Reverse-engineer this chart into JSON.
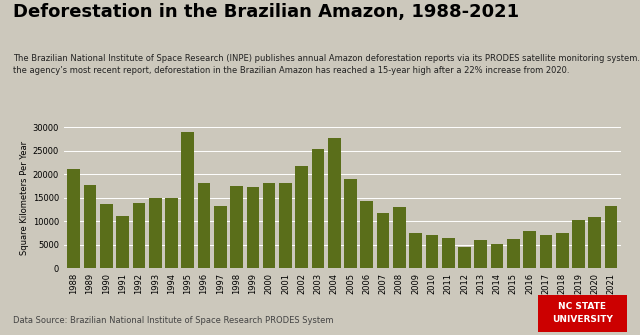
{
  "title": "Deforestation in the Brazilian Amazon, 1988-2021",
  "subtitle": "The Brazilian National Institute of Space Research (INPE) publishes annual Amazon deforestation reports via its PRODES satellite monitoring system. According to\nthe agency’s most recent report, deforestation in the Brazilian Amazon has reached a 15-year high after a 22% increase from 2020.",
  "ylabel": "Square Kilometers Per Year",
  "source": "Data Source: Brazilian National Institute of Space Research PRODES System",
  "years": [
    1988,
    1989,
    1990,
    1991,
    1992,
    1993,
    1994,
    1995,
    1996,
    1997,
    1998,
    1999,
    2000,
    2001,
    2002,
    2003,
    2004,
    2005,
    2006,
    2007,
    2008,
    2009,
    2010,
    2011,
    2012,
    2013,
    2014,
    2015,
    2016,
    2017,
    2018,
    2019,
    2020,
    2021
  ],
  "values": [
    21050,
    17770,
    13730,
    11030,
    13786,
    14896,
    14896,
    29059,
    18161,
    13227,
    17383,
    17259,
    18226,
    18165,
    21651,
    25396,
    27772,
    19014,
    14286,
    11651,
    12911,
    7464,
    7000,
    6418,
    4571,
    5891,
    5012,
    6207,
    7893,
    6947,
    7536,
    10129,
    10851,
    13235
  ],
  "bar_color": "#5a6e1a",
  "background_color": "#ccc8bc",
  "plot_bg_color": "#ccc8bc",
  "ylim": [
    0,
    30000
  ],
  "yticks": [
    0,
    5000,
    10000,
    15000,
    20000,
    25000,
    30000
  ],
  "title_fontsize": 13,
  "subtitle_fontsize": 6.0,
  "ylabel_fontsize": 6.0,
  "source_fontsize": 6.0,
  "tick_fontsize": 6.0,
  "nc_state_box_color": "#cc0000",
  "nc_state_text": "NC STATE\nUNIVERSITY"
}
